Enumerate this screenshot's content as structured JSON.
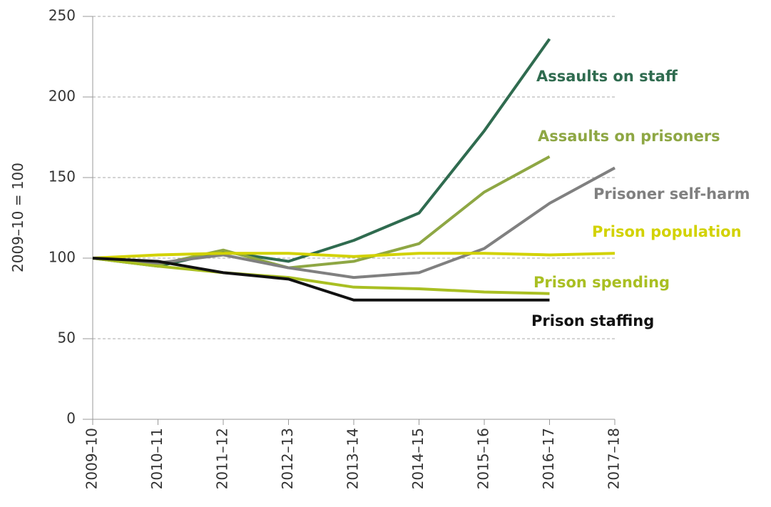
{
  "chart_data": {
    "type": "line",
    "y_label": "2009–10 = 100",
    "categories": [
      "2009–10",
      "2010–11",
      "2011–12",
      "2012–13",
      "2013–14",
      "2014–15",
      "2015–16",
      "2016–17",
      "2017–18"
    ],
    "series": [
      {
        "name": "Assaults on staff",
        "color": "#2f6b4f",
        "values": [
          100,
          95,
          104,
          98,
          111,
          128,
          179,
          236,
          null
        ]
      },
      {
        "name": "Assaults on prisoners",
        "color": "#8ea744",
        "values": [
          100,
          96,
          105,
          94,
          98,
          109,
          141,
          163,
          null
        ]
      },
      {
        "name": "Prisoner self-harm",
        "color": "#808080",
        "values": [
          100,
          97,
          102,
          94,
          88,
          91,
          106,
          134,
          156
        ]
      },
      {
        "name": "Prison population",
        "color": "#d2d200",
        "values": [
          100,
          102,
          103,
          103,
          101,
          103,
          103,
          102,
          103
        ]
      },
      {
        "name": "Prison spending",
        "color": "#a9bf22",
        "values": [
          100,
          95,
          91,
          88,
          82,
          81,
          79,
          78,
          null
        ]
      },
      {
        "name": "Prison staffing",
        "color": "#111111",
        "values": [
          100,
          98,
          91,
          87,
          74,
          74,
          74,
          74,
          null
        ]
      }
    ],
    "ylim": [
      0,
      250
    ],
    "yticks": [
      0,
      50,
      100,
      150,
      200,
      250
    ],
    "grid": true
  }
}
